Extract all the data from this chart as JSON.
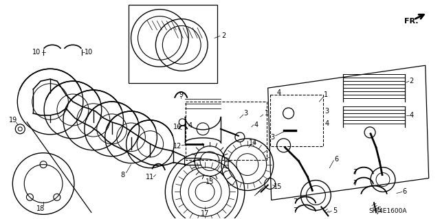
{
  "bg_color": "#ffffff",
  "fig_width": 6.4,
  "fig_height": 3.19,
  "dpi": 100,
  "diagram_code_text": "SHJ4E1600A",
  "label_fontsize": 7.0
}
